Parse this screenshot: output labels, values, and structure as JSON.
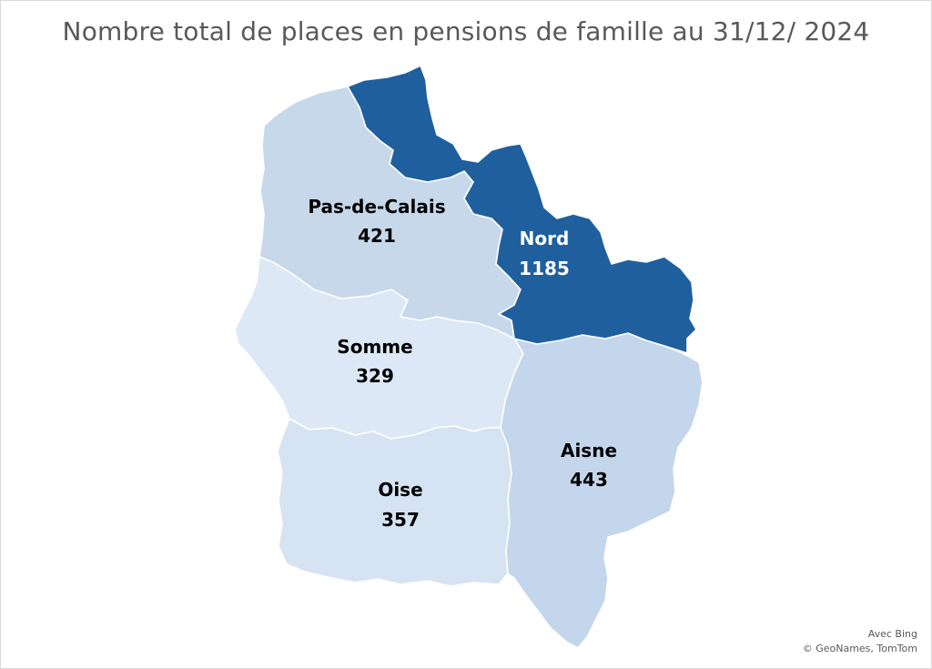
{
  "title": "Nombre total de places en pensions de famille au 31/12/ 2024",
  "regions": [
    {
      "name": "Pas-de-Calais",
      "value": "421",
      "fill": "#c6d8ea",
      "text_color": "#000000"
    },
    {
      "name": "Nord",
      "value": "1185",
      "fill": "#1f5f9e",
      "text_color": "#ffffff"
    },
    {
      "name": "Somme",
      "value": "329",
      "fill": "#dce8f5",
      "text_color": "#000000"
    },
    {
      "name": "Oise",
      "value": "357",
      "fill": "#d5e3f2",
      "text_color": "#000000"
    },
    {
      "name": "Aisne",
      "value": "443",
      "fill": "#c3d6eb",
      "text_color": "#000000"
    }
  ],
  "attribution": {
    "line1": "Avec Bing",
    "line2": "© GeoNames, TomTom"
  }
}
